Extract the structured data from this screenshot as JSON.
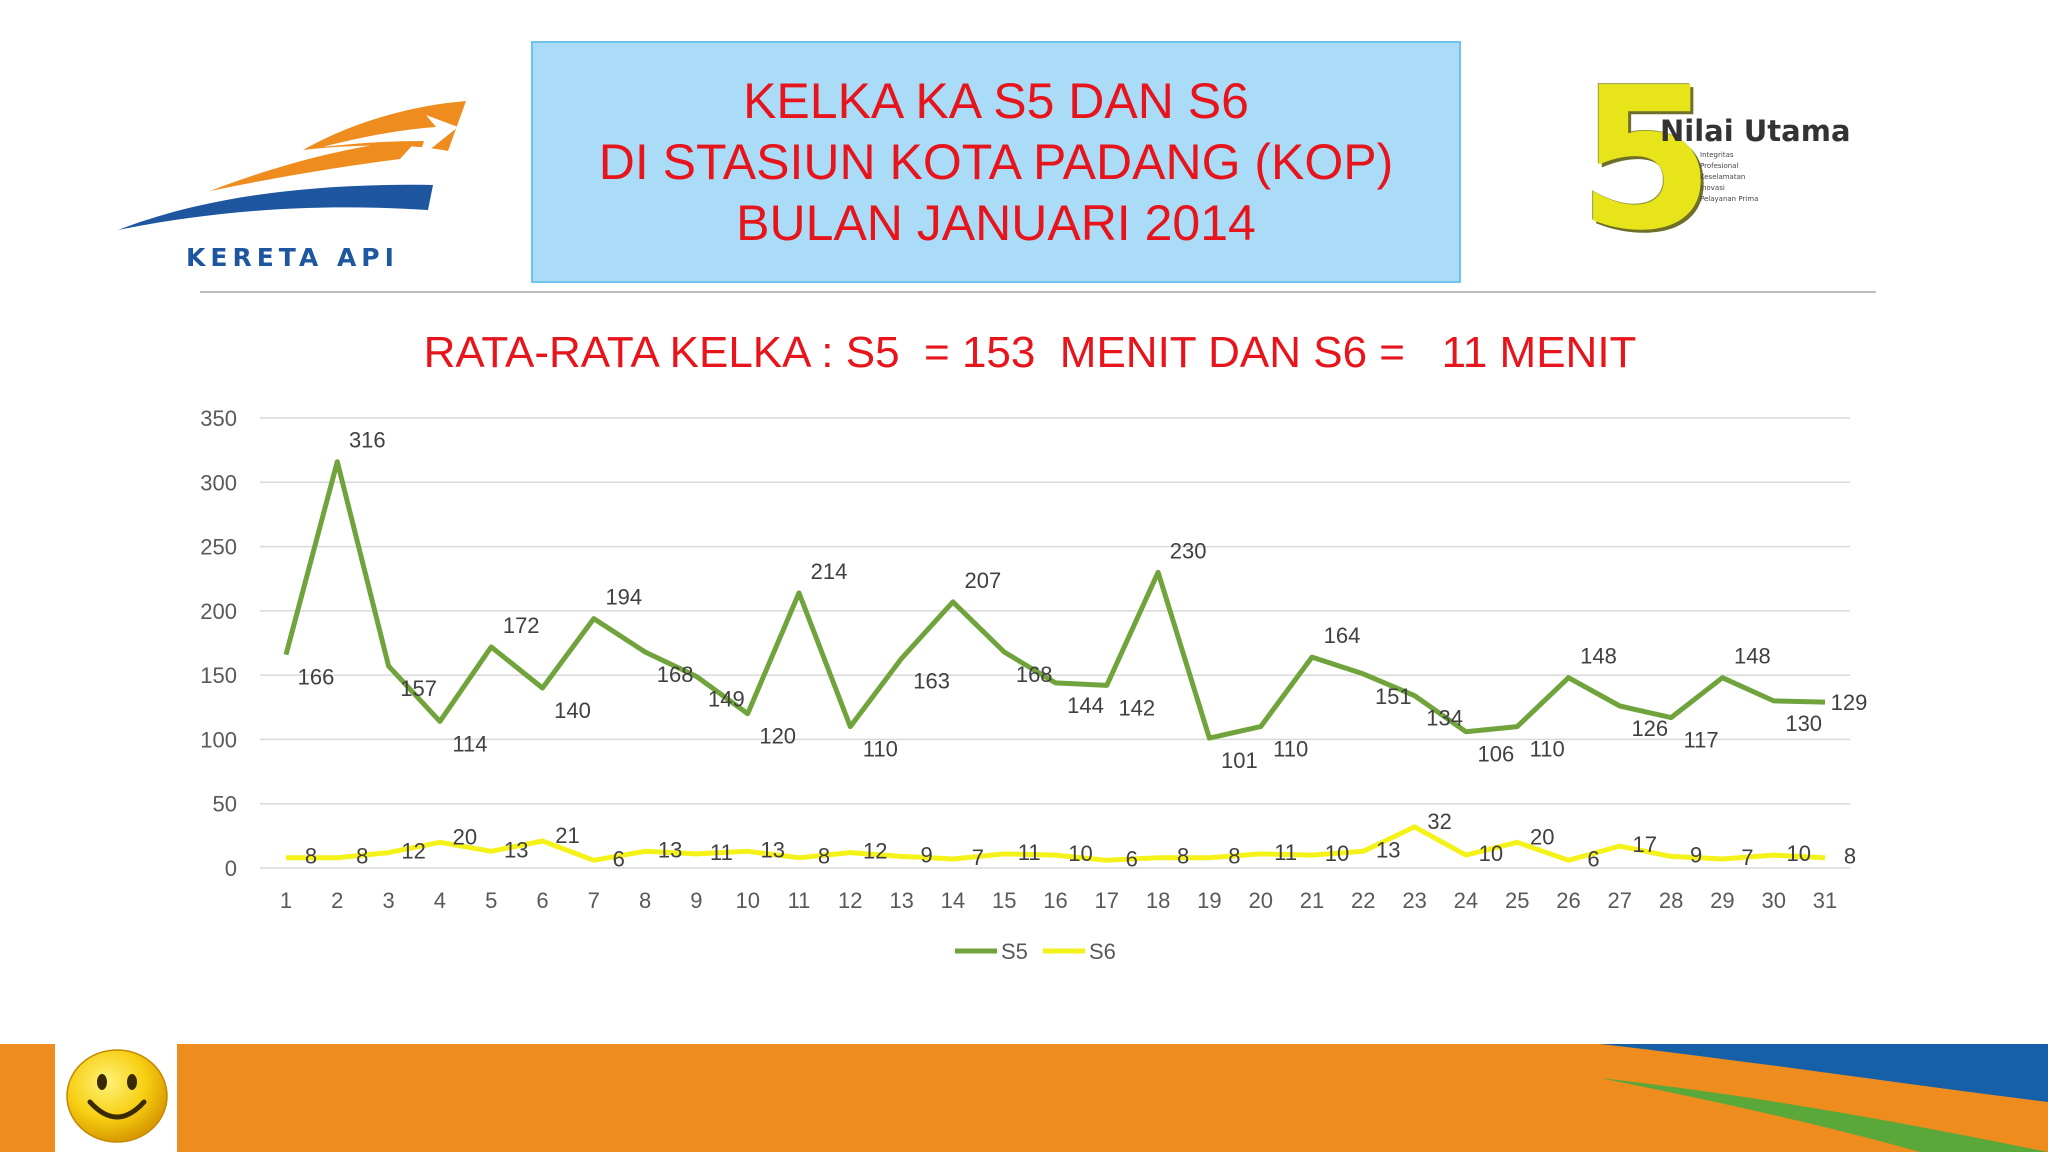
{
  "header": {
    "company_logo_text": "KERETA API",
    "title_lines": [
      "KELKA KA S5 DAN S6",
      "DI STASIUN KOTA PADANG (KOP)",
      "BULAN JANUARI 2014"
    ],
    "values_logo": {
      "numeral": "5",
      "title": "Nilai Utama",
      "items": [
        "Integritas",
        "Profesional",
        "Keselamatan",
        "Inovasi",
        "Pelayanan Prima"
      ]
    }
  },
  "subtitle": "RATA-RATA KELKA : S5  = 153  MENIT DAN S6 =   11 MENIT",
  "colors": {
    "title_red": "#e8141c",
    "title_box": "#aadcf7",
    "s5_line": "#70a33c",
    "s6_line": "#f5f21a",
    "footer_orange": "#ef8c1e",
    "footer_blue": "#1660a8",
    "footer_green": "#5aa83a"
  },
  "icons": [
    "kereta-api-logo-icon",
    "nilai-utama-logo-icon",
    "smiley-icon"
  ],
  "chart_data": {
    "type": "line",
    "x": [
      "1",
      "2",
      "3",
      "4",
      "5",
      "6",
      "7",
      "8",
      "9",
      "10",
      "11",
      "12",
      "13",
      "14",
      "15",
      "16",
      "17",
      "18",
      "19",
      "20",
      "21",
      "22",
      "23",
      "24",
      "25",
      "26",
      "27",
      "28",
      "29",
      "30",
      "31"
    ],
    "series": [
      {
        "name": "S5",
        "color": "#70a33c",
        "values": [
          166,
          316,
          157,
          114,
          172,
          140,
          194,
          168,
          149,
          120,
          214,
          110,
          163,
          207,
          168,
          144,
          142,
          230,
          101,
          110,
          164,
          151,
          134,
          106,
          110,
          148,
          126,
          117,
          148,
          130,
          129
        ]
      },
      {
        "name": "S6",
        "color": "#f5f21a",
        "values": [
          8,
          8,
          12,
          20,
          13,
          21,
          6,
          13,
          11,
          13,
          8,
          12,
          9,
          7,
          11,
          10,
          6,
          8,
          8,
          11,
          10,
          13,
          32,
          10,
          20,
          6,
          17,
          9,
          7,
          10,
          8
        ]
      }
    ],
    "ylim": [
      0,
      350
    ],
    "yticks": [
      0,
      50,
      100,
      150,
      200,
      250,
      300,
      350
    ],
    "grid": true,
    "legend": "bottom"
  }
}
